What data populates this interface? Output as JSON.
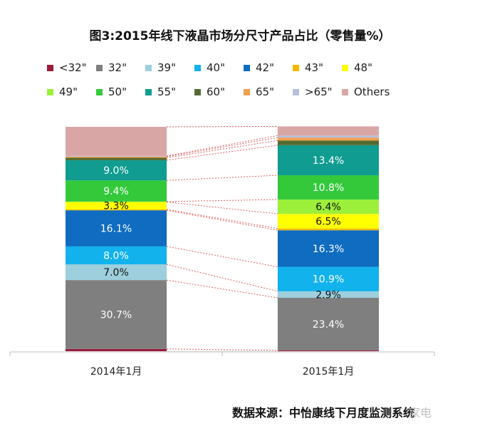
{
  "title": "图3:2015年线下液晶市场分尺寸产品占比（零售量%）",
  "source": "数据来源：中怡康线下月度监测系统",
  "watermark": "家电",
  "legend": [
    {
      "label": "<32\"",
      "color": "#9b1b3b"
    },
    {
      "label": "32\"",
      "color": "#7f7f7f"
    },
    {
      "label": "39\"",
      "color": "#9dcfdd"
    },
    {
      "label": "40\"",
      "color": "#12b2ec"
    },
    {
      "label": "42\"",
      "color": "#0f6cc0"
    },
    {
      "label": "43\"",
      "color": "#f5b800"
    },
    {
      "label": "48\"",
      "color": "#ffff00"
    },
    {
      "label": "49\"",
      "color": "#9cf03a"
    },
    {
      "label": "50\"",
      "color": "#33c93b"
    },
    {
      "label": "55\"",
      "color": "#109c91"
    },
    {
      "label": "60\"",
      "color": "#556b2f"
    },
    {
      "label": "65\"",
      "color": "#f0a050"
    },
    {
      "label": ">65\"",
      "color": "#b7bfdd"
    },
    {
      "label": "Others",
      "color": "#d9a6a6"
    }
  ],
  "chart_data": {
    "type": "stacked-bar",
    "title": "图3:2015年线下液晶市场分尺寸产品占比（零售量%）",
    "categories": [
      "2014年1月",
      "2015年1月"
    ],
    "ylim": [
      0,
      100
    ],
    "series": [
      {
        "name": "<32\"",
        "values": [
          1.0,
          0.4
        ],
        "labels": [
          "",
          ""
        ]
      },
      {
        "name": "32\"",
        "values": [
          30.7,
          23.4
        ],
        "labels": [
          "30.7%",
          "23.4%"
        ]
      },
      {
        "name": "39\"",
        "values": [
          7.0,
          2.9
        ],
        "labels": [
          "7.0%",
          "2.9%"
        ]
      },
      {
        "name": "40\"",
        "values": [
          8.0,
          10.9
        ],
        "labels": [
          "8.0%",
          "10.9%"
        ]
      },
      {
        "name": "42\"",
        "values": [
          16.1,
          16.3
        ],
        "labels": [
          "16.1%",
          "16.3%"
        ]
      },
      {
        "name": "43\"",
        "values": [
          0.4,
          0.8
        ],
        "labels": [
          "",
          ""
        ]
      },
      {
        "name": "48\"",
        "values": [
          3.3,
          6.5
        ],
        "labels": [
          "3.3%",
          "6.5%"
        ]
      },
      {
        "name": "49\"",
        "values": [
          0.2,
          6.4
        ],
        "labels": [
          "",
          "6.4%"
        ]
      },
      {
        "name": "50\"",
        "values": [
          9.4,
          10.8
        ],
        "labels": [
          "9.4%",
          "10.8%"
        ]
      },
      {
        "name": "55\"",
        "values": [
          9.0,
          13.4
        ],
        "labels": [
          "9.0%",
          "13.4%"
        ]
      },
      {
        "name": "60\"",
        "values": [
          1.1,
          2.1
        ],
        "labels": [
          "",
          ""
        ]
      },
      {
        "name": "65\"",
        "values": [
          0.5,
          1.3
        ],
        "labels": [
          "",
          ""
        ]
      },
      {
        "name": ">65\"",
        "values": [
          0.3,
          0.9
        ],
        "labels": [
          "",
          ""
        ]
      },
      {
        "name": "Others",
        "values": [
          13.0,
          4.1
        ],
        "labels": [
          "",
          ""
        ]
      }
    ],
    "label_colors": {
      "<32\"": "#ffffff",
      "32\"": "#ffffff",
      "39\"": "#111111",
      "40\"": "#ffffff",
      "42\"": "#ffffff",
      "43\"": "#111111",
      "48\"": "#111111",
      "49\"": "#111111",
      "50\"": "#ffffff",
      "55\"": "#ffffff",
      "60\"": "#ffffff",
      "65\"": "#111111",
      ">65\"": "#111111",
      "Others": "#111111"
    },
    "connector_color": "#e06060"
  }
}
